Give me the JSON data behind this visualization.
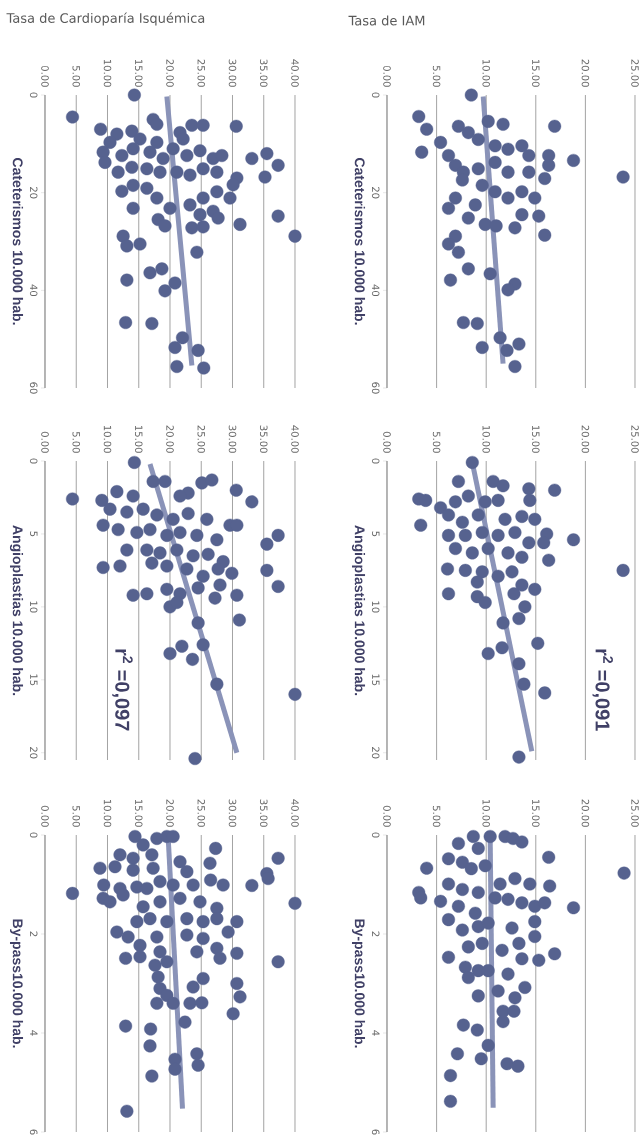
{
  "chart_data": [
    {
      "type": "scatter",
      "title": "Tasa de Cardioparía Isquémica",
      "ylabel": "Cateterismos 10.000 hab.",
      "xlim": [
        0,
        40
      ],
      "ylim": [
        60,
        0
      ],
      "xticks": [
        {
          "value": 0,
          "label": "0.00"
        },
        {
          "value": 5,
          "label": "5.00"
        },
        {
          "value": 10,
          "label": "10.00"
        },
        {
          "value": 15,
          "label": "15.00"
        },
        {
          "value": 20,
          "label": "20.00"
        },
        {
          "value": 25,
          "label": "25.00"
        },
        {
          "value": 30,
          "label": "30.00"
        },
        {
          "value": 35,
          "label": "35.00"
        },
        {
          "value": 40,
          "label": "40.00"
        }
      ],
      "yticks": [
        0,
        20,
        40,
        60
      ],
      "grid": "x",
      "series": [
        {
          "marker": "circle",
          "color": "#56628f",
          "x": [
            14.3,
            4.4,
            8.9,
            17.3,
            17.9,
            23.5,
            25.3,
            30.6,
            21.6,
            11.5,
            10.4,
            13.9,
            15.2,
            17.9,
            22.1,
            9.3,
            9.6,
            12.3,
            14.1,
            16.8,
            18.9,
            20.5,
            22.7,
            24.8,
            26.9,
            28.3,
            33.1,
            35.5,
            37.3,
            35.2,
            30.7,
            30.1,
            29.6,
            27.5,
            25.3,
            23.2,
            21.1,
            18.4,
            16.3,
            13.9,
            11.7,
            14.1,
            12.3,
            16.3,
            17.9,
            20.0,
            23.2,
            25.3,
            27.5,
            26.9,
            24.8,
            23.5,
            25.3,
            27.7,
            31.2,
            37.3,
            40.0,
            14.1,
            18.1,
            19.2,
            12.5,
            13.1,
            15.2,
            24.3,
            18.7,
            16.8,
            13.1,
            20.8,
            19.2,
            12.9,
            17.1,
            22.0,
            20.8,
            24.5,
            21.1,
            25.4
          ],
          "values": [
            0,
            4.5,
            7,
            5,
            6,
            6.2,
            6.2,
            6.4,
            7.7,
            8,
            9.7,
            7.4,
            9,
            9.7,
            9,
            11.7,
            13.8,
            12.4,
            11,
            11.7,
            13,
            11,
            12.4,
            11.4,
            13,
            12.4,
            13,
            12,
            14.4,
            16.8,
            17,
            18.4,
            21.1,
            15.8,
            15.1,
            16.4,
            15.8,
            15.8,
            15.1,
            14.8,
            15.8,
            18.5,
            19.7,
            19.1,
            21.1,
            23.2,
            22.5,
            21.1,
            19.8,
            23.8,
            24.5,
            27.2,
            27,
            25.2,
            26.5,
            24.8,
            28.9,
            23.2,
            25.5,
            26.8,
            28.9,
            30.9,
            30.5,
            32.2,
            35.6,
            36.4,
            37.9,
            38.5,
            40.1,
            46.6,
            46.8,
            49.7,
            51.7,
            52.3,
            55.6,
            55.9
          ]
        },
        {
          "type": "line",
          "marker": "none",
          "color": "#8a93b8",
          "x": [
            19.5,
            23.5
          ],
          "values": [
            0.3,
            55.4
          ]
        }
      ]
    },
    {
      "type": "scatter",
      "title": "Tasa de IAM",
      "ylabel": "Cateterismos 10.000 hab.",
      "xlim": [
        0,
        25
      ],
      "ylim": [
        60,
        0
      ],
      "xticks": [
        {
          "value": 0,
          "label": "0.00"
        },
        {
          "value": 5,
          "label": "5.00"
        },
        {
          "value": 10,
          "label": "10.00"
        },
        {
          "value": 15,
          "label": "15.00"
        },
        {
          "value": 20,
          "label": "20.00"
        },
        {
          "value": 25,
          "label": "25.00"
        }
      ],
      "yticks": [
        0,
        20,
        40,
        60
      ],
      "grid": "x",
      "series": [
        {
          "marker": "circle",
          "color": "#56628f",
          "x": [
            8.5,
            3.2,
            4.0,
            3.5,
            5.4,
            16.9,
            11.7,
            10.2,
            7.2,
            8.2,
            9.2,
            10.9,
            12.2,
            13.6,
            14.3,
            16.3,
            16.3,
            18.8,
            23.8,
            6.2,
            6.9,
            7.7,
            7.6,
            9.2,
            10.9,
            12.2,
            14.3,
            15.9,
            14.9,
            13.6,
            12.2,
            10.9,
            9.6,
            8.9,
            6.9,
            6.2,
            8.2,
            9.9,
            11.0,
            12.9,
            13.6,
            15.3,
            15.9,
            6.9,
            6.2,
            7.2,
            8.2,
            6.4,
            10.4,
            12.9,
            12.2,
            7.7,
            9.1,
            11.4,
            9.6,
            13.3,
            12.1,
            12.9
          ],
          "values": [
            0,
            4.4,
            7,
            11.7,
            9.7,
            6.4,
            6,
            5.4,
            6.4,
            7.7,
            9.1,
            10.4,
            11.1,
            10.4,
            12.4,
            12.4,
            14.4,
            13.4,
            16.8,
            12.4,
            14.4,
            15.8,
            17.4,
            15.1,
            13.8,
            15.8,
            15.8,
            17.1,
            21.1,
            19.8,
            21.1,
            19.8,
            18.5,
            22.5,
            21.1,
            23.2,
            25.2,
            26.5,
            26.8,
            27.2,
            24.5,
            24.8,
            28.7,
            28.9,
            30.5,
            32.2,
            35.6,
            37.9,
            36.6,
            38.7,
            39.9,
            46.6,
            46.8,
            49.7,
            51.7,
            51,
            52.3,
            55.6
          ]
        },
        {
          "type": "line",
          "marker": "none",
          "color": "#8a93b8",
          "x": [
            9.7,
            11.7
          ],
          "values": [
            0.3,
            55
          ]
        }
      ]
    },
    {
      "type": "scatter",
      "ylabel": "Angioplastias 10.000 hab.",
      "xlim": [
        0,
        40
      ],
      "ylim": [
        20.5,
        0
      ],
      "xticks": [
        {
          "value": 0,
          "label": "0.00"
        },
        {
          "value": 5,
          "label": "5.00"
        },
        {
          "value": 10,
          "label": "10.00"
        },
        {
          "value": 15,
          "label": "15.00"
        },
        {
          "value": 20,
          "label": "20.00"
        },
        {
          "value": 25,
          "label": "25.00"
        },
        {
          "value": 30,
          "label": "30.00"
        },
        {
          "value": 35,
          "label": "35.00"
        },
        {
          "value": 40,
          "label": "40.00"
        }
      ],
      "yticks": [
        0,
        5,
        10,
        15,
        20
      ],
      "grid": "x",
      "annotations": [
        "r$^{2}$ =0,097"
      ],
      "series": [
        {
          "marker": "circle",
          "color": "#56628f",
          "x": [
            14.3,
            19.2,
            17.3,
            25.1,
            26.7,
            30.6,
            22.9,
            21.6,
            33.1,
            4.4,
            9.1,
            11.5,
            14.1,
            10.4,
            13.1,
            15.7,
            17.9,
            20.5,
            22.9,
            25.9,
            29.6,
            30.7,
            37.3,
            35.5,
            9.3,
            11.7,
            14.7,
            16.8,
            19.5,
            21.6,
            24.3,
            27.5,
            13.1,
            16.3,
            18.4,
            21.1,
            23.7,
            26.1,
            28.5,
            9.3,
            12.0,
            17.1,
            19.5,
            22.7,
            25.3,
            27.7,
            29.9,
            35.5,
            37.3,
            28.0,
            14.1,
            16.3,
            19.5,
            21.6,
            24.5,
            27.2,
            30.7,
            20.0,
            21.1,
            31.1,
            24.5,
            20.0,
            21.9,
            23.6,
            25.3,
            27.5,
            40.0,
            24.0
          ],
          "values": [
            0.1,
            1.4,
            1.4,
            1.5,
            1.3,
            2,
            2.2,
            2.4,
            2.8,
            2.6,
            2.7,
            2.1,
            2.4,
            3.3,
            3.5,
            3.3,
            3.7,
            4,
            3.6,
            4,
            4.4,
            4.4,
            5.1,
            5.7,
            4.4,
            4.7,
            4.9,
            4.7,
            5.1,
            4.9,
            5.1,
            5.4,
            6.1,
            6.1,
            6.3,
            6.1,
            6.5,
            6.4,
            6.9,
            7.3,
            7.2,
            7,
            7.2,
            7.4,
            7.9,
            7.4,
            7.7,
            7.5,
            8.6,
            8.5,
            9.2,
            9.1,
            8.8,
            9.1,
            8.7,
            9.4,
            9.2,
            10,
            9.7,
            10.9,
            11.1,
            13.2,
            12.7,
            13.6,
            12.6,
            15.3,
            16,
            20.4
          ]
        },
        {
          "type": "line",
          "marker": "none",
          "color": "#8a93b8",
          "x": [
            16.8,
            30.7
          ],
          "values": [
            0.2,
            20
          ]
        }
      ]
    },
    {
      "type": "scatter",
      "ylabel": "Angioplastias 10.000 hab.",
      "xlim": [
        0,
        25
      ],
      "ylim": [
        20.5,
        0
      ],
      "xticks": [
        {
          "value": 0,
          "label": "0.00"
        },
        {
          "value": 5,
          "label": "5.00"
        },
        {
          "value": 10,
          "label": "10.00"
        },
        {
          "value": 15,
          "label": "15.00"
        },
        {
          "value": 20,
          "label": "20.00"
        },
        {
          "value": 25,
          "label": "25.00"
        }
      ],
      "yticks": [
        0,
        5,
        10,
        15,
        20
      ],
      "grid": "x",
      "annotations": [
        "r$^{2}$ =0,091"
      ],
      "series": [
        {
          "marker": "circle",
          "color": "#56628f",
          "x": [
            8.6,
            7.2,
            10.7,
            11.7,
            16.9,
            14.3,
            14.4,
            3.2,
            3.9,
            5.4,
            6.9,
            8.2,
            9.9,
            11.2,
            3.4,
            6.2,
            7.6,
            9.2,
            11.9,
            13.6,
            14.9,
            16.1,
            18.8,
            23.8,
            6.2,
            7.9,
            9.6,
            11.2,
            12.9,
            14.3,
            15.8,
            6.9,
            8.6,
            10.2,
            12.2,
            13.6,
            16.3,
            6.1,
            7.9,
            9.6,
            11.2,
            12.6,
            13.6,
            14.9,
            9.1,
            6.2,
            9.1,
            9.9,
            12.8,
            13.9,
            13.3,
            11.7,
            15.2,
            11.6,
            10.2,
            13.3,
            13.8,
            15.9,
            13.3
          ],
          "values": [
            0.1,
            1.4,
            1.4,
            1.7,
            2,
            1.9,
            2.7,
            2.6,
            2.7,
            3.2,
            2.8,
            2.4,
            2.8,
            2.7,
            4.4,
            3.7,
            4.2,
            3.7,
            4,
            3.8,
            4,
            5,
            5.4,
            7.5,
            5.1,
            5.1,
            4.9,
            5.1,
            4.9,
            5.6,
            5.6,
            6,
            6.3,
            6,
            6.3,
            6.6,
            6.8,
            7.4,
            7.5,
            7.6,
            7.9,
            7.6,
            8.5,
            8.8,
            8.3,
            9.1,
            9.3,
            9.7,
            9.1,
            10,
            10.8,
            11.1,
            12.5,
            12.8,
            13.2,
            13.9,
            15.3,
            15.9,
            20.3
          ]
        },
        {
          "type": "line",
          "marker": "none",
          "color": "#8a93b8",
          "x": [
            8.6,
            14.6
          ],
          "values": [
            0.1,
            19.9
          ]
        }
      ]
    },
    {
      "type": "scatter",
      "ylabel": "By-pass10.000 hab.",
      "xlim": [
        0,
        40
      ],
      "ylim": [
        6,
        0
      ],
      "xticks": [
        {
          "value": 0,
          "label": "0.00"
        },
        {
          "value": 5,
          "label": "5.00"
        },
        {
          "value": 10,
          "label": "10.00"
        },
        {
          "value": 15,
          "label": "15.00"
        },
        {
          "value": 20,
          "label": "20.00"
        },
        {
          "value": 25,
          "label": "25.00"
        },
        {
          "value": 30,
          "label": "30.00"
        },
        {
          "value": 35,
          "label": "35.00"
        },
        {
          "value": 40,
          "label": "40.00"
        }
      ],
      "yticks": [
        0,
        2,
        4,
        6
      ],
      "grid": "x",
      "series": [
        {
          "marker": "circle",
          "color": "#56628f",
          "x": [
            14.4,
            17.9,
            19.5,
            20.5,
            15.7,
            27.3,
            37.3,
            12.0,
            14.1,
            17.1,
            21.6,
            26.4,
            8.8,
            11.2,
            14.1,
            17.3,
            22.7,
            35.5,
            35.7,
            26.5,
            28.5,
            33.1,
            9.4,
            12.0,
            14.7,
            16.3,
            18.4,
            20.5,
            23.7,
            4.4,
            9.3,
            10.4,
            12.5,
            15.7,
            18.4,
            21.6,
            24.8,
            27.5,
            40.0,
            27.5,
            14.7,
            16.8,
            19.5,
            22.7,
            25.3,
            30.7,
            29.3,
            11.5,
            13.3,
            15.2,
            17.9,
            22.7,
            25.3,
            24.3,
            27.5,
            28.0,
            30.7,
            37.3,
            12.9,
            15.2,
            18.4,
            17.6,
            19.5,
            25.3,
            23.7,
            18.1,
            18.4,
            17.9,
            19.5,
            20.5,
            23.2,
            25.1,
            30.7,
            31.2,
            30.1,
            22.4,
            12.9,
            16.9,
            16.8,
            20.8,
            20.8,
            24.3,
            24.5,
            17.1,
            13.1
          ],
          "values": [
            0.03,
            0.07,
            0.03,
            0.03,
            0.2,
            0.27,
            0.47,
            0.4,
            0.47,
            0.4,
            0.54,
            0.57,
            0.67,
            0.64,
            0.71,
            0.67,
            0.74,
            0.78,
            0.88,
            0.91,
            1.01,
            1.02,
            1.01,
            1.08,
            1.05,
            1.08,
            0.94,
            1.01,
            1.01,
            1.18,
            1.28,
            1.35,
            1.21,
            1.45,
            1.35,
            1.28,
            1.35,
            1.48,
            1.38,
            1.69,
            1.75,
            1.69,
            1.75,
            1.69,
            1.75,
            1.75,
            1.96,
            1.96,
            2.06,
            2.23,
            2.06,
            2.02,
            2.09,
            2.36,
            2.29,
            2.49,
            2.39,
            2.56,
            2.49,
            2.46,
            2.36,
            2.63,
            2.56,
            2.9,
            3.07,
            2.87,
            3.1,
            3.4,
            3.24,
            3.4,
            3.4,
            3.39,
            3,
            3.27,
            3.61,
            3.78,
            3.86,
            3.92,
            4.26,
            4.53,
            4.73,
            4.42,
            4.65,
            4.87,
            5.58
          ]
        },
        {
          "type": "line",
          "marker": "none",
          "color": "#8a93b8",
          "x": [
            19.7,
            22
          ],
          "values": [
            0.03,
            5.53
          ]
        }
      ]
    },
    {
      "type": "scatter",
      "ylabel": "By-pass10.000 hab.",
      "xlim": [
        0,
        25
      ],
      "ylim": [
        6,
        0
      ],
      "xticks": [
        {
          "value": 0,
          "label": "0.00"
        },
        {
          "value": 5,
          "label": "5.00"
        },
        {
          "value": 10,
          "label": "10.00"
        },
        {
          "value": 15,
          "label": "15.00"
        },
        {
          "value": 20,
          "label": "20.00"
        },
        {
          "value": 25,
          "label": "25.00"
        }
      ],
      "yticks": [
        0,
        2,
        4,
        6
      ],
      "grid": "x",
      "series": [
        {
          "marker": "circle",
          "color": "#56628f",
          "x": [
            8.7,
            10.4,
            11.9,
            12.7,
            13.6,
            7.2,
            9.2,
            16.3,
            23.9,
            4.0,
            6.2,
            7.6,
            8.5,
            9.9,
            11.4,
            12.9,
            14.4,
            16.4,
            3.2,
            3.4,
            5.4,
            6.2,
            7.6,
            9.2,
            10.9,
            12.2,
            13.6,
            14.9,
            15.9,
            18.8,
            7.2,
            8.9,
            6.2,
            7.6,
            9.2,
            10.2,
            12.6,
            14.9,
            14.9,
            13.3,
            11.6,
            9.6,
            8.2,
            16.9,
            15.3,
            13.6,
            6.2,
            7.9,
            9.2,
            10.2,
            12.2,
            13.9,
            12.9,
            8.2,
            9.2,
            11.2,
            11.7,
            12.8,
            11.7,
            7.7,
            9.1,
            10.2,
            7.1,
            9.5,
            12.1,
            13.2,
            6.4,
            6.4
          ],
          "values": [
            0.03,
            0.03,
            0.03,
            0.07,
            0.14,
            0.17,
            0.27,
            0.45,
            0.77,
            0.67,
            0.48,
            0.55,
            0.68,
            0.62,
            0.99,
            0.88,
            0.99,
            1.03,
            1.16,
            1.27,
            1.34,
            0.99,
            1.1,
            1.16,
            1.27,
            1.3,
            1.37,
            1.44,
            1.37,
            1.47,
            1.44,
            1.58,
            1.71,
            1.92,
            1.85,
            1.78,
            1.88,
            1.75,
            2.05,
            2.19,
            2.33,
            2.19,
            2.26,
            2.4,
            2.53,
            2.5,
            2.47,
            2.67,
            2.74,
            2.74,
            2.81,
            3.08,
            3.29,
            2.88,
            3.25,
            3.15,
            3.56,
            3.56,
            3.77,
            3.84,
            3.94,
            4.25,
            4.42,
            4.52,
            4.62,
            4.67,
            4.86,
            5.38
          ]
        },
        {
          "type": "line",
          "marker": "none",
          "color": "#8a93b8",
          "x": [
            10.4,
            10.7
          ],
          "values": [
            0.03,
            5.51
          ]
        }
      ]
    }
  ]
}
